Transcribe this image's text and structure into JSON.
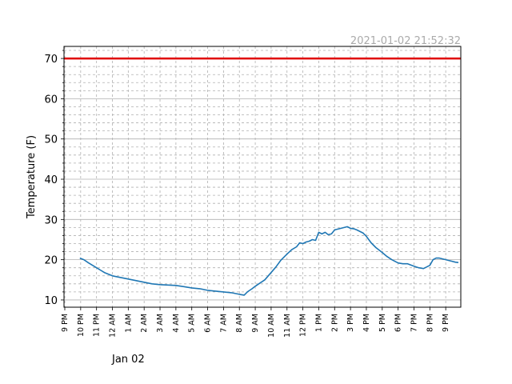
{
  "chart_data": {
    "type": "line",
    "timestamp": "2021-01-02 21:52:32",
    "ylabel": "Temperature (F)",
    "date_label": "Jan 02",
    "ylim": [
      8.2,
      73
    ],
    "xlim": [
      -0.05,
      24.95
    ],
    "y_ticks": [
      10,
      20,
      30,
      40,
      50,
      60,
      70
    ],
    "x_ticks": [
      {
        "x": 0,
        "label": "9 PM"
      },
      {
        "x": 1,
        "label": "10 PM"
      },
      {
        "x": 2,
        "label": "11 PM"
      },
      {
        "x": 3,
        "label": "12 AM"
      },
      {
        "x": 4,
        "label": "1 AM"
      },
      {
        "x": 5,
        "label": "2 AM"
      },
      {
        "x": 6,
        "label": "3 AM"
      },
      {
        "x": 7,
        "label": "4 AM"
      },
      {
        "x": 8,
        "label": "5 AM"
      },
      {
        "x": 9,
        "label": "6 AM"
      },
      {
        "x": 10,
        "label": "7 AM"
      },
      {
        "x": 11,
        "label": "8 AM"
      },
      {
        "x": 12,
        "label": "9 AM"
      },
      {
        "x": 13,
        "label": "10 AM"
      },
      {
        "x": 14,
        "label": "11 AM"
      },
      {
        "x": 15,
        "label": "12 PM"
      },
      {
        "x": 16,
        "label": "1 PM"
      },
      {
        "x": 17,
        "label": "2 PM"
      },
      {
        "x": 18,
        "label": "3 PM"
      },
      {
        "x": 19,
        "label": "4 PM"
      },
      {
        "x": 20,
        "label": "5 PM"
      },
      {
        "x": 21,
        "label": "6 PM"
      },
      {
        "x": 22,
        "label": "7 PM"
      },
      {
        "x": 23,
        "label": "8 PM"
      },
      {
        "x": 24,
        "label": "9 PM"
      }
    ],
    "grid": true,
    "colors": {
      "series": "#1f77b4",
      "threshold": "#e00000",
      "timestamp": "#aaaaaa",
      "grid": "#b0b0b0"
    },
    "threshold": {
      "value": 70
    },
    "series": [
      {
        "x": [
          0.95,
          1.2,
          1.5,
          2.0,
          2.5,
          3.0,
          3.5,
          4.0,
          4.5,
          5.0,
          5.5,
          6.0,
          6.5,
          7.0,
          7.5,
          8.0,
          8.5,
          9.0,
          9.5,
          10.0,
          10.5,
          11.0,
          11.3,
          11.5,
          11.8,
          12.0,
          12.3,
          12.6,
          13.0,
          13.3,
          13.6,
          14.0,
          14.3,
          14.6,
          14.8,
          15.0,
          15.2,
          15.4,
          15.6,
          15.8,
          16.0,
          16.2,
          16.4,
          16.6,
          16.8,
          17.0,
          17.2,
          17.4,
          17.6,
          17.8,
          18.0,
          18.2,
          18.4,
          18.6,
          18.8,
          19.0,
          19.3,
          19.6,
          20.0,
          20.3,
          20.6,
          21.0,
          21.3,
          21.6,
          22.0,
          22.3,
          22.6,
          23.0,
          23.2,
          23.4,
          23.6,
          23.8,
          24.0,
          24.2,
          24.4,
          24.6,
          24.8
        ],
        "y": [
          20.4,
          20.0,
          19.2,
          18.0,
          16.8,
          16.0,
          15.6,
          15.2,
          14.8,
          14.4,
          14.0,
          13.8,
          13.7,
          13.6,
          13.3,
          13.0,
          12.8,
          12.4,
          12.2,
          12.0,
          11.8,
          11.4,
          11.2,
          12.0,
          12.8,
          13.4,
          14.2,
          15.0,
          16.8,
          18.2,
          19.8,
          21.4,
          22.5,
          23.2,
          24.2,
          24.0,
          24.4,
          24.6,
          25.0,
          24.8,
          26.8,
          26.4,
          26.8,
          26.2,
          26.4,
          27.4,
          27.6,
          27.8,
          28.0,
          28.2,
          27.8,
          27.7,
          27.4,
          27.0,
          26.6,
          25.8,
          24.2,
          23.0,
          21.8,
          20.8,
          20.0,
          19.2,
          19.0,
          19.0,
          18.4,
          18.0,
          17.8,
          18.6,
          20.0,
          20.4,
          20.4,
          20.2,
          20.0,
          19.8,
          19.6,
          19.4,
          19.3
        ]
      }
    ]
  }
}
